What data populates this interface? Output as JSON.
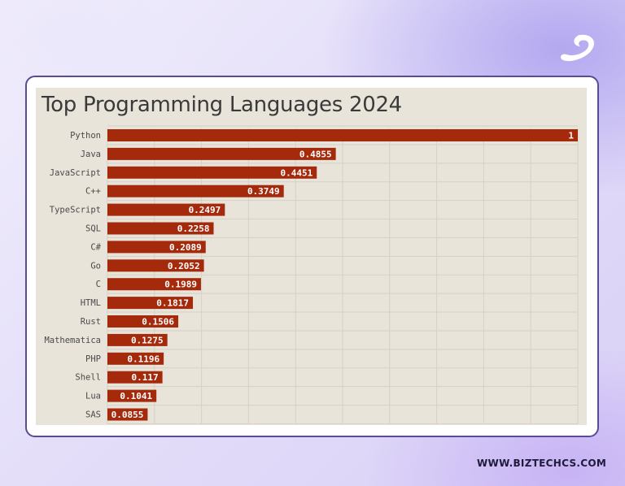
{
  "brand": {
    "logo_icon": "biztech-swirl-logo-icon",
    "website": "WWW.BIZTECHCS.COM"
  },
  "chart_data": {
    "type": "bar",
    "orientation": "horizontal",
    "title": "Top Programming Languages 2024",
    "categories": [
      "Python",
      "Java",
      "JavaScript",
      "C++",
      "TypeScript",
      "SQL",
      "C#",
      "Go",
      "C",
      "HTML",
      "Rust",
      "Mathematica",
      "PHP",
      "Shell",
      "Lua",
      "SAS"
    ],
    "values": [
      1,
      0.4855,
      0.4451,
      0.3749,
      0.2497,
      0.2258,
      0.2089,
      0.2052,
      0.1989,
      0.1817,
      0.1506,
      0.1275,
      0.1196,
      0.117,
      0.1041,
      0.0855
    ],
    "value_labels": [
      "1",
      "0.4855",
      "0.4451",
      "0.3749",
      "0.2497",
      "0.2258",
      "0.2089",
      "0.2052",
      "0.1989",
      "0.1817",
      "0.1506",
      "0.1275",
      "0.1196",
      "0.117",
      "0.1041",
      "0.0855"
    ],
    "xlim": [
      0,
      1
    ],
    "grid": true,
    "bar_color": "#a52a0c",
    "plot_background": "#e8e4da",
    "label_color": "#ffffff"
  }
}
